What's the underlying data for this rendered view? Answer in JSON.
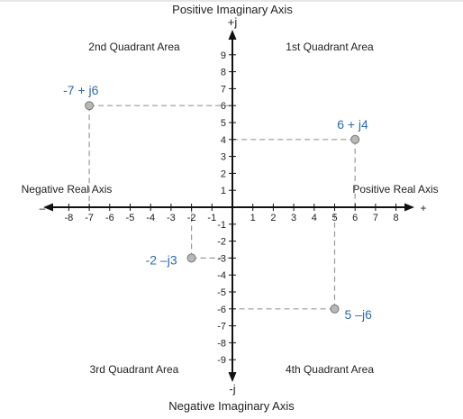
{
  "labels": {
    "top_axis": "Positive Imaginary Axis",
    "bottom_axis": "Negative Imaginary Axis",
    "pos_j": "+j",
    "neg_j": "-j",
    "left_real": "Negative Real Axis",
    "right_real": "Positive Real Axis",
    "plus": "+",
    "minus": "–",
    "q1": "1st Quadrant Area",
    "q2": "2nd Quadrant Area",
    "q3": "3rd Quadrant Area",
    "q4": "4th Quadrant Area"
  },
  "chart_data": {
    "type": "scatter",
    "xlim": [
      -8,
      8
    ],
    "ylim": [
      -9,
      9
    ],
    "x_ticks": [
      -8,
      -7,
      -6,
      -5,
      -4,
      -3,
      -2,
      -1,
      1,
      2,
      3,
      4,
      5,
      6,
      7,
      8
    ],
    "y_ticks": [
      9,
      8,
      7,
      6,
      5,
      4,
      3,
      2,
      1,
      -1,
      -2,
      -3,
      -4,
      -5,
      -6,
      -7,
      -8,
      -9
    ],
    "points": [
      {
        "x": -7,
        "y": 6,
        "label": "-7 + j6"
      },
      {
        "x": 6,
        "y": 4,
        "label": "6 + j4"
      },
      {
        "x": -2,
        "y": -3,
        "label": "-2 –j3"
      },
      {
        "x": 5,
        "y": -6,
        "label": "5 –j6"
      }
    ],
    "colors": {
      "axis": "#111111",
      "guide": "#999999",
      "point_fill": "#b8b8b8",
      "point_stroke": "#777777",
      "label": "#2f6aa8"
    }
  }
}
